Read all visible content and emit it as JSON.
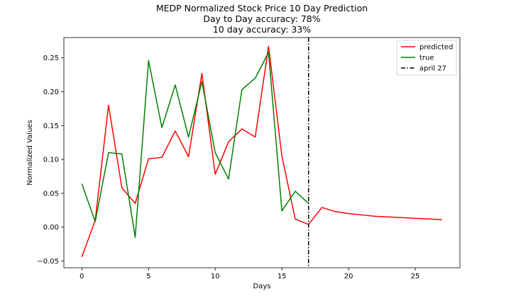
{
  "chart_data": {
    "type": "line",
    "title": [
      "MEDP Normalized Stock Price 10 Day Prediction",
      "Day to Day accuracy: 78%",
      "10 day accuracy: 33%"
    ],
    "xlabel": "Days",
    "ylabel": "Normalized Values",
    "xlim": [
      -1.35,
      28.35
    ],
    "ylim": [
      -0.06,
      0.28
    ],
    "xticks": [
      0,
      5,
      10,
      15,
      20,
      25
    ],
    "yticks": [
      -0.05,
      0.0,
      0.05,
      0.1,
      0.15,
      0.2,
      0.25
    ],
    "ytick_labels": [
      "−0.05",
      "0.00",
      "0.05",
      "0.10",
      "0.15",
      "0.20",
      "0.25"
    ],
    "grid": false,
    "legend_position": "top-right",
    "series": [
      {
        "name": "predicted",
        "color": "#ff0000",
        "style": "solid",
        "x": [
          0,
          1,
          2,
          3,
          4,
          5,
          6,
          7,
          8,
          9,
          10,
          11,
          12,
          13,
          14,
          15,
          16,
          17,
          18,
          19,
          20,
          21,
          22,
          23,
          24,
          25,
          26,
          27
        ],
        "y": [
          -0.044,
          0.01,
          0.18,
          0.058,
          0.035,
          0.101,
          0.103,
          0.142,
          0.104,
          0.227,
          0.078,
          0.126,
          0.145,
          0.133,
          0.267,
          0.105,
          0.012,
          0.004,
          0.029,
          0.023,
          0.02,
          0.018,
          0.016,
          0.015,
          0.014,
          0.013,
          0.012,
          0.011
        ]
      },
      {
        "name": "true",
        "color": "#008000",
        "style": "solid",
        "x": [
          0,
          1,
          2,
          3,
          4,
          5,
          6,
          7,
          8,
          9,
          10,
          11,
          12,
          13,
          14,
          15,
          16,
          17
        ],
        "y": [
          0.064,
          0.008,
          0.11,
          0.108,
          -0.015,
          0.246,
          0.147,
          0.21,
          0.133,
          0.215,
          0.11,
          0.071,
          0.203,
          0.22,
          0.258,
          0.024,
          0.053,
          0.035
        ]
      }
    ],
    "vlines": [
      {
        "name": "april 27",
        "x": 17,
        "color": "#000000",
        "style": "dashdot"
      }
    ]
  }
}
